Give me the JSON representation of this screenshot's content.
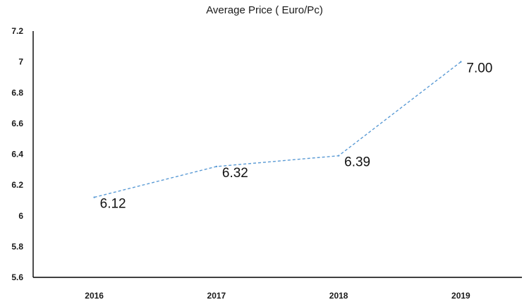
{
  "chart_data": {
    "type": "line",
    "title": "Average Price ( Euro/Pc)",
    "xlabel": "",
    "ylabel": "",
    "categories": [
      "2016",
      "2017",
      "2018",
      "2019"
    ],
    "values": [
      6.12,
      6.32,
      6.39,
      7.0
    ],
    "data_labels": [
      "6.12",
      "6.32",
      "6.39",
      "7.00"
    ],
    "ylim": [
      5.6,
      7.2
    ],
    "yticks": [
      "5.6",
      "5.8",
      "6",
      "6.2",
      "6.4",
      "6.6",
      "6.8",
      "7",
      "7.2"
    ],
    "line_style": "dashed",
    "grid": false,
    "legend": "none"
  },
  "colors": {
    "series": "#5b9bd5",
    "axis": "#000000",
    "text": "#1a1a1a"
  }
}
